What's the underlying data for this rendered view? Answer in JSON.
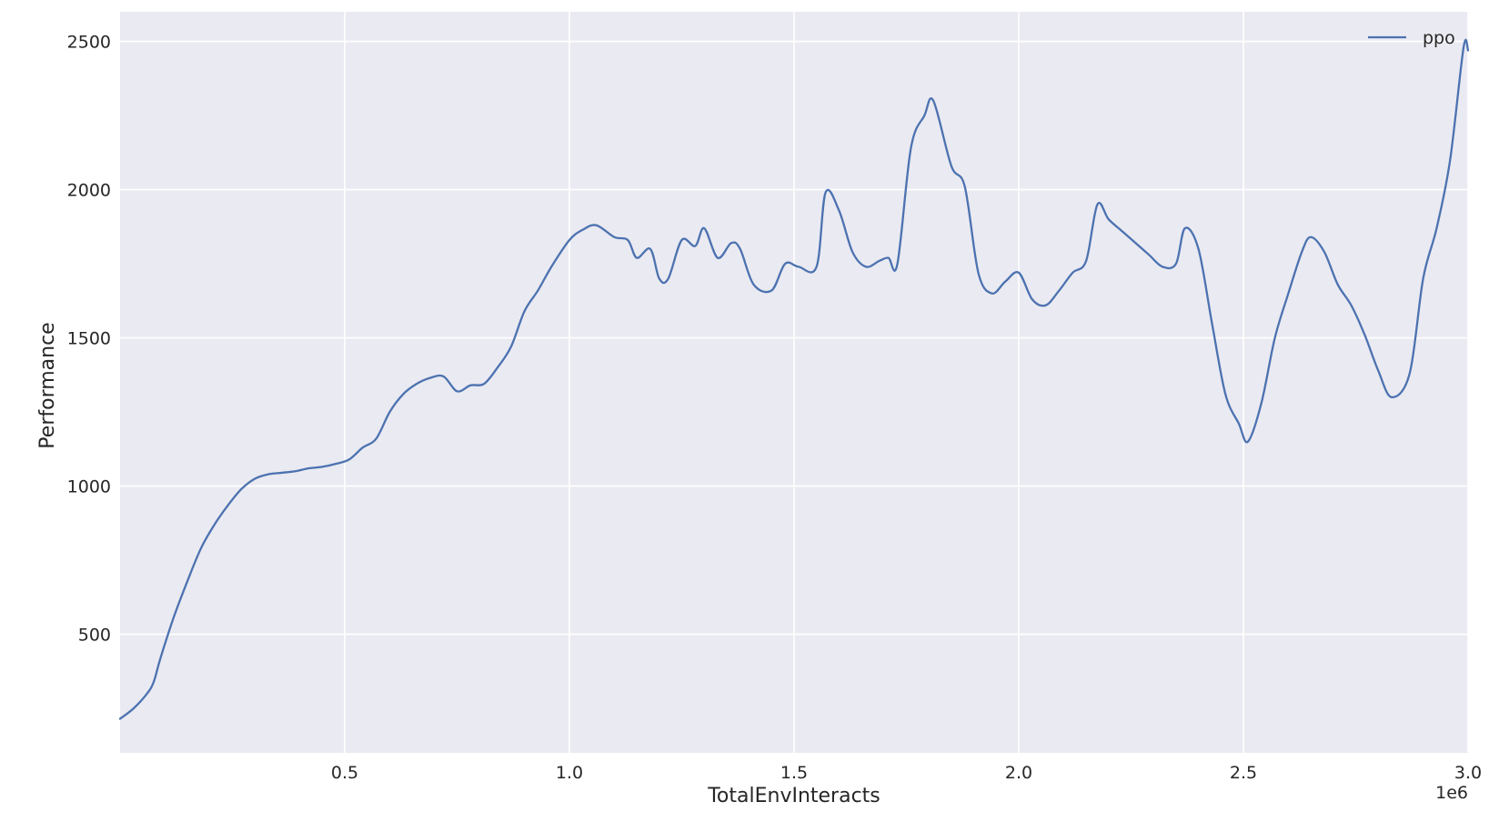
{
  "chart_data": {
    "type": "line",
    "title": "",
    "xlabel": "TotalEnvInteracts",
    "ylabel": "Performance",
    "x_offset_label": "1e6",
    "xlim": [
      0,
      3.0
    ],
    "ylim": [
      100,
      2600
    ],
    "x_ticks": [
      0.5,
      1.0,
      1.5,
      2.0,
      2.5,
      3.0
    ],
    "x_tick_labels": [
      "0.5",
      "1.0",
      "1.5",
      "2.0",
      "2.5",
      "3.0"
    ],
    "y_ticks": [
      500,
      1000,
      1500,
      2000,
      2500
    ],
    "y_tick_labels": [
      "500",
      "1000",
      "1500",
      "2000",
      "2500"
    ],
    "grid": true,
    "legend_position": "top-right",
    "colors": {
      "background": "#eaeaf2",
      "grid": "#ffffff",
      "line": "#4c72b0",
      "text": "#262626"
    },
    "series": [
      {
        "name": "ppo",
        "x": [
          0.0,
          0.03,
          0.06,
          0.075,
          0.09,
          0.12,
          0.15,
          0.18,
          0.21,
          0.24,
          0.27,
          0.3,
          0.33,
          0.36,
          0.39,
          0.42,
          0.45,
          0.48,
          0.51,
          0.54,
          0.57,
          0.6,
          0.63,
          0.66,
          0.69,
          0.72,
          0.75,
          0.78,
          0.81,
          0.84,
          0.87,
          0.9,
          0.93,
          0.96,
          1.0,
          1.03,
          1.06,
          1.1,
          1.13,
          1.15,
          1.18,
          1.2,
          1.22,
          1.25,
          1.28,
          1.3,
          1.33,
          1.36,
          1.38,
          1.41,
          1.45,
          1.48,
          1.51,
          1.55,
          1.57,
          1.6,
          1.63,
          1.66,
          1.69,
          1.71,
          1.73,
          1.76,
          1.79,
          1.81,
          1.85,
          1.88,
          1.91,
          1.94,
          1.97,
          2.0,
          2.03,
          2.06,
          2.09,
          2.12,
          2.15,
          2.175,
          2.2,
          2.23,
          2.26,
          2.29,
          2.32,
          2.35,
          2.37,
          2.4,
          2.43,
          2.46,
          2.49,
          2.51,
          2.54,
          2.57,
          2.6,
          2.63,
          2.65,
          2.68,
          2.71,
          2.74,
          2.77,
          2.8,
          2.83,
          2.87,
          2.9,
          2.93,
          2.96,
          2.99,
          3.0
        ],
        "y": [
          215,
          250,
          300,
          340,
          420,
          560,
          680,
          790,
          870,
          935,
          990,
          1025,
          1040,
          1045,
          1050,
          1060,
          1065,
          1075,
          1090,
          1130,
          1160,
          1250,
          1310,
          1345,
          1365,
          1370,
          1320,
          1340,
          1345,
          1400,
          1470,
          1590,
          1660,
          1740,
          1830,
          1865,
          1880,
          1840,
          1830,
          1770,
          1800,
          1700,
          1700,
          1830,
          1810,
          1870,
          1770,
          1820,
          1800,
          1680,
          1660,
          1750,
          1740,
          1740,
          1990,
          1930,
          1790,
          1740,
          1760,
          1770,
          1750,
          2140,
          2250,
          2300,
          2080,
          2010,
          1720,
          1650,
          1690,
          1720,
          1630,
          1610,
          1660,
          1720,
          1760,
          1950,
          1900,
          1860,
          1820,
          1780,
          1740,
          1750,
          1870,
          1800,
          1550,
          1310,
          1210,
          1150,
          1280,
          1500,
          1650,
          1790,
          1840,
          1790,
          1680,
          1610,
          1510,
          1390,
          1300,
          1380,
          1700,
          1870,
          2100,
          2480,
          2470
        ]
      }
    ]
  }
}
